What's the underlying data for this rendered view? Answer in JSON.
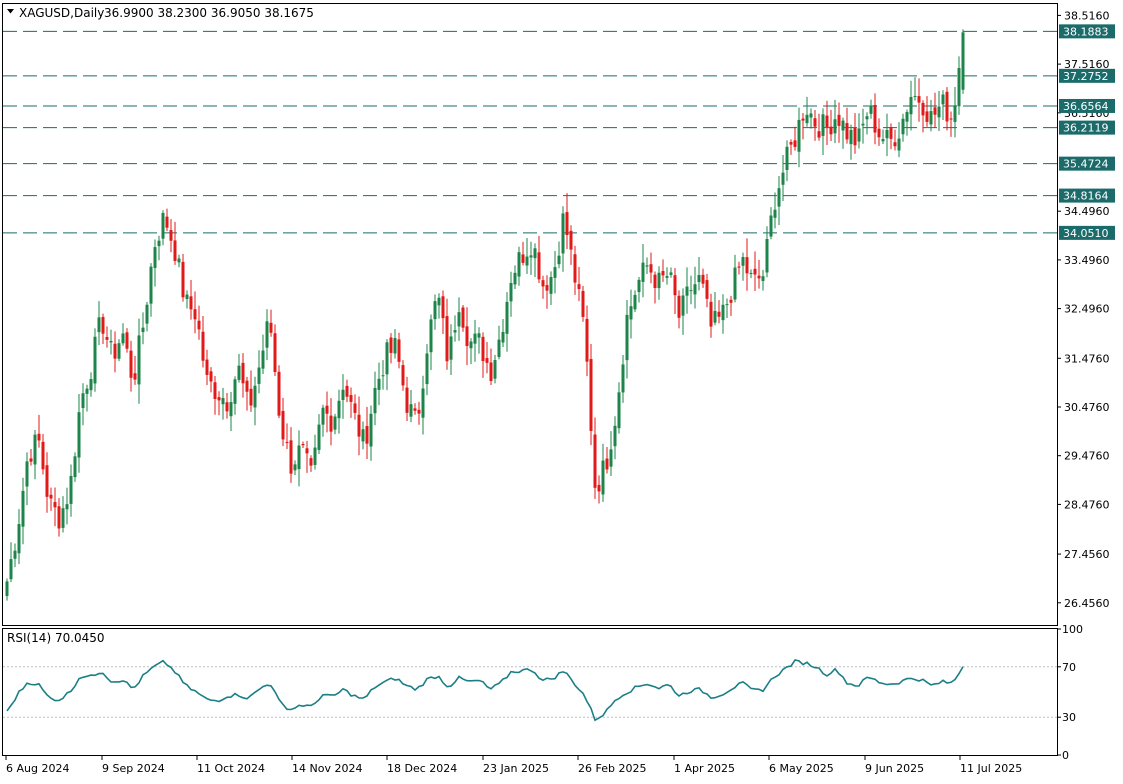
{
  "header": {
    "symbol_label": "XAGUSD,Daily",
    "ohlc_label": "36.9900 38.2300 36.9050 38.1675"
  },
  "rsi_header": {
    "label": "RSI(14) 70.0450"
  },
  "colors": {
    "bull": "#1e8449",
    "bear": "#e01919",
    "rsi_line": "#1b7f86",
    "level_line": "#1b6b6b",
    "level_tag_bg": "#1b6b6b",
    "grid_dot": "#bfbfbf",
    "text": "#000000"
  },
  "chart_data": [
    {
      "type": "candlestick",
      "title": "XAGUSD,Daily",
      "ylim": [
        26.0,
        38.75
      ],
      "y_ticks": [
        "38.5160",
        "37.5160",
        "36.5160",
        "34.4960",
        "33.4960",
        "32.4960",
        "31.4760",
        "30.4760",
        "29.4760",
        "28.4760",
        "27.4560",
        "26.4560"
      ],
      "x_ticks": [
        "6 Aug 2024",
        "9 Sep 2024",
        "11 Oct 2024",
        "14 Nov 2024",
        "18 Dec 2024",
        "23 Jan 2025",
        "26 Feb 2025",
        "1 Apr 2025",
        "6 May 2025",
        "9 Jun 2025",
        "11 Jul 2025"
      ],
      "levels": [
        "38.1883",
        "37.2752",
        "36.6564",
        "36.2119",
        "35.4724",
        "34.8164",
        "34.0510"
      ],
      "last_ohlc": {
        "open": 36.99,
        "high": 38.23,
        "low": 36.905,
        "close": 38.1675
      },
      "series": [
        {
          "anchor_closes": [
            26.9,
            28.0,
            29.5,
            29.8,
            28.5,
            28.2,
            28.8,
            30.6,
            31.3,
            32.3,
            31.5,
            32.0,
            31.0,
            32.2,
            33.8,
            34.4,
            33.7,
            32.6,
            32.4,
            31.0,
            30.8,
            30.6,
            31.3,
            30.4,
            31.3,
            32.3,
            30.2,
            29.3,
            29.6,
            29.0,
            30.4,
            30.2,
            31.0,
            30.3,
            29.7,
            30.8,
            31.5,
            31.7,
            30.6,
            30.1,
            31.8,
            32.8,
            31.4,
            32.7,
            31.8,
            31.8,
            31.2,
            32.0,
            33.2,
            33.6,
            33.9,
            33.0,
            33.2,
            34.4,
            33.2,
            32.0,
            28.8,
            29.3,
            30.4,
            32.3,
            33.0,
            33.4,
            33.0,
            33.2,
            32.3,
            32.9,
            33.1,
            32.1,
            32.3,
            32.9,
            33.5,
            33.0,
            33.2,
            34.7,
            35.4,
            36.0,
            36.7,
            36.3,
            36.2,
            36.5,
            36.1,
            35.9,
            36.6,
            36.1,
            35.9,
            36.2,
            36.9,
            36.8,
            36.4,
            36.7,
            36.4,
            38.17
          ]
        }
      ]
    },
    {
      "type": "line",
      "title": "RSI(14) 70.0450",
      "ylim": [
        0,
        100
      ],
      "y_ticks": [
        "100",
        "70",
        "30",
        "0"
      ],
      "reference_levels": [
        70,
        30
      ],
      "series": [
        {
          "name": "RSI(14)",
          "anchor_values": [
            34,
            48,
            58,
            56,
            45,
            44,
            50,
            63,
            62,
            67,
            58,
            60,
            52,
            63,
            70,
            74,
            66,
            55,
            50,
            44,
            43,
            47,
            48,
            45,
            52,
            58,
            41,
            36,
            40,
            38,
            48,
            46,
            52,
            47,
            44,
            54,
            58,
            61,
            55,
            52,
            60,
            63,
            54,
            61,
            58,
            59,
            52,
            57,
            66,
            67,
            68,
            59,
            61,
            67,
            57,
            47,
            28,
            34,
            45,
            50,
            54,
            57,
            53,
            56,
            47,
            51,
            52,
            46,
            48,
            53,
            57,
            51,
            52,
            62,
            68,
            74,
            73,
            70,
            64,
            68,
            57,
            55,
            62,
            58,
            56,
            58,
            61,
            60,
            55,
            58,
            57,
            70.05
          ]
        }
      ]
    }
  ]
}
